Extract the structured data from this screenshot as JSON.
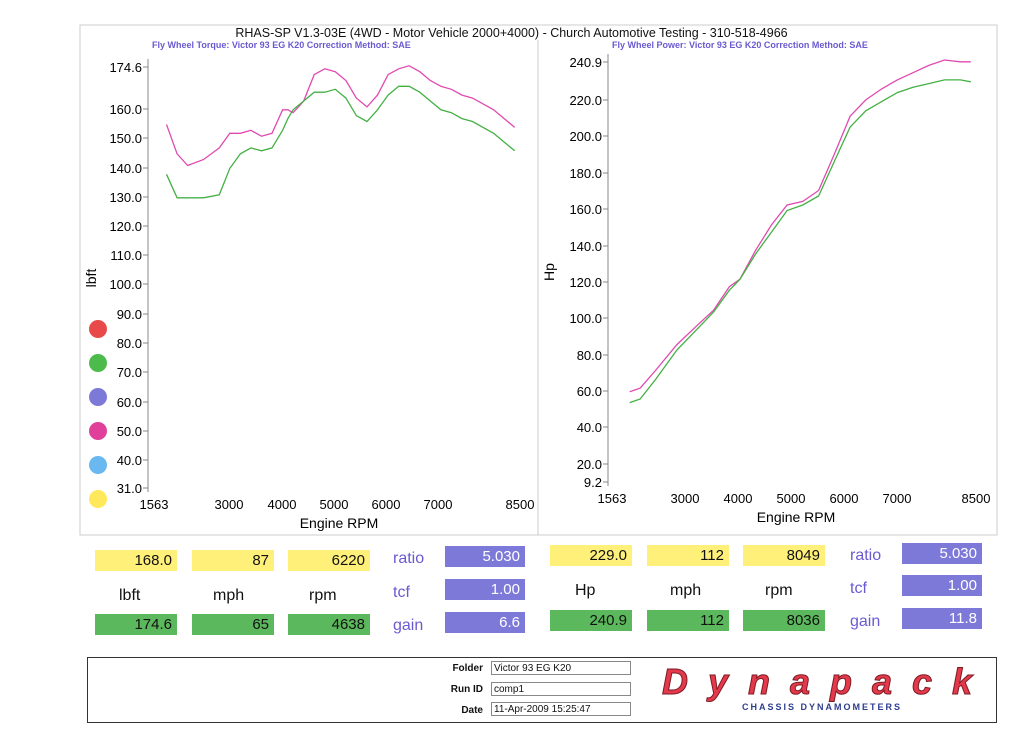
{
  "title": "RHAS-SP V1.3-03E  (4WD - Motor Vehicle 2000+4000) - Church Automotive Testing - 310-518-4966",
  "left_subtitle": "Fly Wheel Torque: Victor 93 EG K20     Correction Method: SAE",
  "right_subtitle": "Fly Wheel Power: Victor 93 EG K20     Correction Method: SAE",
  "legend_dot_colors": [
    "#e84a4a",
    "#4cbb4c",
    "#7d79d8",
    "#e0409a",
    "#6ab8f0",
    "#ffe85c"
  ],
  "chart_data": [
    {
      "type": "line",
      "xlabel": "Engine RPM",
      "ylabel": "lbft",
      "x_ticks": [
        "1563",
        "3000",
        "4000",
        "5000",
        "6000",
        "7000",
        "8500"
      ],
      "y_ticks": [
        "174.6",
        "160.0",
        "150.0",
        "140.0",
        "130.0",
        "120.0",
        "110.0",
        "100.0",
        "90.0",
        "80.0",
        "70.0",
        "60.0",
        "50.0",
        "40.0",
        "31.0"
      ],
      "xlim": [
        1563,
        8500
      ],
      "ylim": [
        31.0,
        174.6
      ],
      "series": [
        {
          "color": "#e04ab0",
          "x": [
            1800,
            2000,
            2200,
            2500,
            2800,
            3000,
            3200,
            3400,
            3600,
            3800,
            4000,
            4100,
            4200,
            4400,
            4600,
            4800,
            5000,
            5200,
            5400,
            5600,
            5800,
            6000,
            6200,
            6400,
            6600,
            6800,
            7000,
            7200,
            7400,
            7600,
            7800,
            8000,
            8200,
            8400
          ],
          "y": [
            155,
            145,
            141,
            143,
            147,
            152,
            152,
            153,
            151,
            152,
            160,
            160,
            159,
            163,
            172,
            174,
            173,
            170,
            164,
            161,
            165,
            172,
            174,
            175,
            173,
            170,
            168,
            167,
            165,
            164,
            162,
            160,
            157,
            154
          ]
        },
        {
          "color": "#44b044",
          "x": [
            1800,
            2000,
            2200,
            2500,
            2800,
            3000,
            3200,
            3400,
            3600,
            3800,
            4000,
            4100,
            4200,
            4400,
            4600,
            4800,
            5000,
            5200,
            5400,
            5600,
            5800,
            6000,
            6200,
            6400,
            6600,
            6800,
            7000,
            7200,
            7400,
            7600,
            7800,
            8000,
            8200,
            8400
          ],
          "y": [
            138,
            130,
            130,
            130,
            131,
            140,
            145,
            147,
            146,
            147,
            153,
            157,
            160,
            163,
            166,
            166,
            167,
            164,
            158,
            156,
            160,
            165,
            168,
            168,
            166,
            163,
            160,
            159,
            157,
            156,
            154,
            152,
            149,
            146
          ]
        }
      ]
    },
    {
      "type": "line",
      "xlabel": "Engine RPM",
      "ylabel": "Hp",
      "x_ticks": [
        "1563",
        "3000",
        "4000",
        "5000",
        "6000",
        "7000",
        "8500"
      ],
      "y_ticks": [
        "240.9",
        "220.0",
        "200.0",
        "180.0",
        "160.0",
        "140.0",
        "120.0",
        "100.0",
        "80.0",
        "60.0",
        "40.0",
        "20.0",
        "9.2"
      ],
      "xlim": [
        1563,
        8500
      ],
      "ylim": [
        9.2,
        240.9
      ],
      "series": [
        {
          "color": "#e04ab0",
          "x": [
            1900,
            2100,
            2400,
            2800,
            3200,
            3500,
            3800,
            4000,
            4300,
            4600,
            4900,
            5200,
            5500,
            5800,
            6100,
            6400,
            6700,
            7000,
            7300,
            7600,
            7900,
            8200,
            8400
          ],
          "y": [
            59,
            61,
            71,
            85,
            96,
            104,
            117,
            121,
            137,
            151,
            162,
            164,
            170,
            190,
            211,
            220,
            226,
            231,
            235,
            239,
            242,
            241,
            241
          ]
        },
        {
          "color": "#44b044",
          "x": [
            1900,
            2100,
            2400,
            2800,
            3200,
            3500,
            3800,
            4000,
            4300,
            4600,
            4900,
            5200,
            5500,
            5800,
            6100,
            6400,
            6700,
            7000,
            7300,
            7600,
            7900,
            8200,
            8400
          ],
          "y": [
            53,
            55,
            66,
            82,
            94,
            103,
            115,
            121,
            135,
            147,
            159,
            162,
            167,
            186,
            205,
            214,
            219,
            224,
            227,
            229,
            231,
            231,
            230
          ]
        }
      ]
    }
  ],
  "left_panel": {
    "row1": {
      "torque": "168.0",
      "mph": "87",
      "rpm": "6220"
    },
    "labels": {
      "unit": "lbft",
      "mph": "mph",
      "rpm": "rpm"
    },
    "row3": {
      "torque": "174.6",
      "mph": "65",
      "rpm": "4638"
    },
    "ratio_label": "ratio",
    "ratio": "5.030",
    "tcf_label": "tcf",
    "tcf": "1.00",
    "gain_label": "gain",
    "gain": "6.6"
  },
  "right_panel": {
    "row1": {
      "power": "229.0",
      "mph": "112",
      "rpm": "8049"
    },
    "labels": {
      "unit": "Hp",
      "mph": "mph",
      "rpm": "rpm"
    },
    "row3": {
      "power": "240.9",
      "mph": "112",
      "rpm": "8036"
    },
    "ratio_label": "ratio",
    "ratio": "5.030",
    "tcf_label": "tcf",
    "tcf": "1.00",
    "gain_label": "gain",
    "gain": "11.8"
  },
  "info": {
    "folder_label": "Folder",
    "folder": "Victor 93 EG K20",
    "runid_label": "Run ID",
    "runid": "comp1",
    "date_label": "Date",
    "date": "11-Apr-2009  15:25:47"
  },
  "logo": {
    "name": "Dynapack",
    "tagline": "CHASSIS  DYNAMOMETERS"
  }
}
